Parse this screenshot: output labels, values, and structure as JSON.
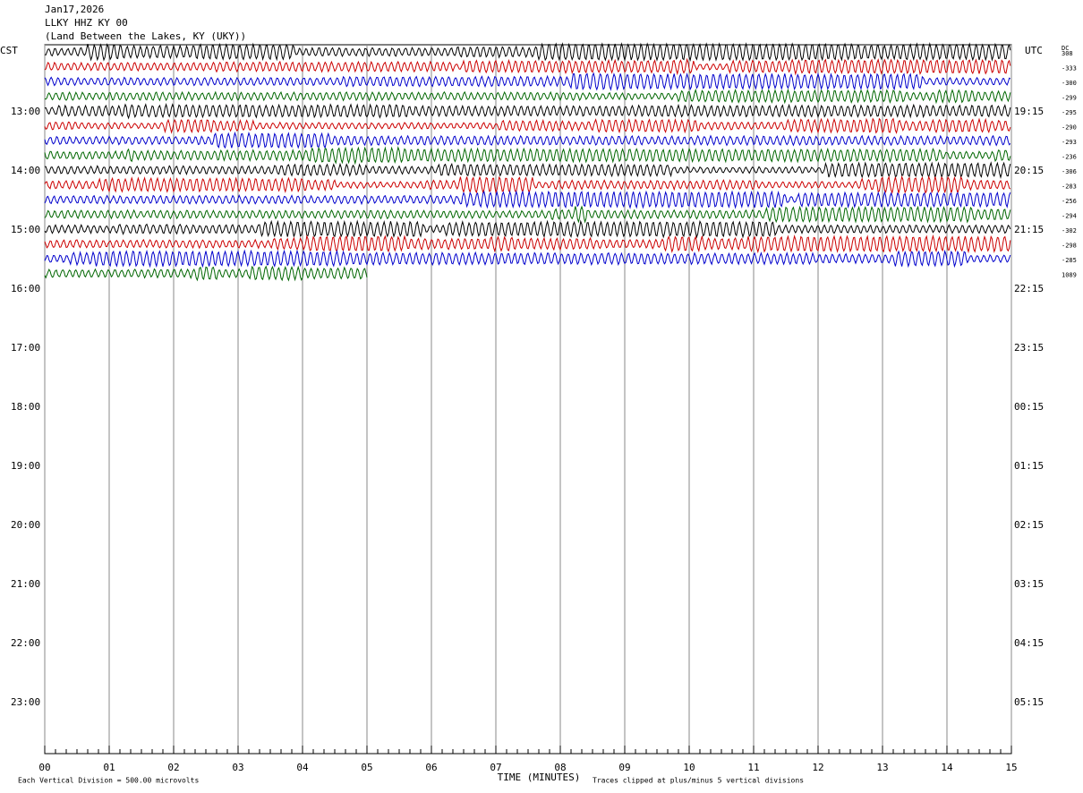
{
  "chart_data": {
    "type": "helicorder",
    "title_lines": [
      "Jan17,2026",
      "LLKY HHZ KY 00",
      "(Land Between the Lakes, KY (UKY))"
    ],
    "left_zone": "CST",
    "right_zone": "UTC",
    "offset_heading": "DC",
    "left_labels": [
      null,
      null,
      null,
      null,
      "13:00",
      null,
      null,
      null,
      "14:00",
      null,
      null,
      null,
      "15:00",
      null,
      null,
      null,
      "16:00",
      null,
      null,
      null,
      "17:00",
      null,
      null,
      null,
      "18:00",
      null,
      null,
      null,
      "19:00",
      null,
      null,
      null,
      "20:00",
      null,
      null,
      null,
      "21:00",
      null,
      null,
      null,
      "22:00",
      null,
      null,
      null,
      "23:00",
      null,
      null,
      null
    ],
    "right_labels": [
      null,
      null,
      null,
      null,
      "19:15",
      null,
      null,
      null,
      "20:15",
      null,
      null,
      null,
      "21:15",
      null,
      null,
      null,
      "22:15",
      null,
      null,
      null,
      "23:15",
      null,
      null,
      null,
      "00:15",
      null,
      null,
      null,
      "01:15",
      null,
      null,
      null,
      "02:15",
      null,
      null,
      null,
      "03:15",
      null,
      null,
      null,
      "04:15",
      null,
      null,
      null,
      "05:15",
      null,
      null,
      null
    ],
    "traces": [
      {
        "color": "#000000",
        "end": 15,
        "offset": 308
      },
      {
        "color": "#cc0000",
        "end": 15,
        "offset": -333
      },
      {
        "color": "#0000cc",
        "end": 15,
        "offset": -300
      },
      {
        "color": "#006600",
        "end": 15,
        "offset": -299
      },
      {
        "color": "#000000",
        "end": 15,
        "offset": -295
      },
      {
        "color": "#cc0000",
        "end": 15,
        "offset": -290
      },
      {
        "color": "#0000cc",
        "end": 15,
        "offset": -293
      },
      {
        "color": "#006600",
        "end": 15,
        "offset": -236
      },
      {
        "color": "#000000",
        "end": 15,
        "offset": -306
      },
      {
        "color": "#cc0000",
        "end": 15,
        "offset": -283
      },
      {
        "color": "#0000cc",
        "end": 15,
        "offset": -256
      },
      {
        "color": "#006600",
        "end": 15,
        "offset": -294
      },
      {
        "color": "#000000",
        "end": 15,
        "offset": -302
      },
      {
        "color": "#cc0000",
        "end": 15,
        "offset": -298
      },
      {
        "color": "#0000cc",
        "end": 15,
        "offset": -285
      },
      {
        "color": "#006600",
        "end": 5,
        "offset": 1089
      }
    ],
    "xlim": [
      0,
      15
    ],
    "xticks": [
      {
        "value": 0,
        "label": "00"
      },
      {
        "value": 1,
        "label": "01"
      },
      {
        "value": 2,
        "label": "02"
      },
      {
        "value": 3,
        "label": "03"
      },
      {
        "value": 4,
        "label": "04"
      },
      {
        "value": 5,
        "label": "05"
      },
      {
        "value": 6,
        "label": "06"
      },
      {
        "value": 7,
        "label": "07"
      },
      {
        "value": 8,
        "label": "08"
      },
      {
        "value": 9,
        "label": "09"
      },
      10,
      11,
      12,
      13,
      14,
      15
    ],
    "x_label": "TIME (MINUTES)",
    "scale_note": "Each Vertical Division =  500.00 microvolts",
    "clip_note": "Traces clipped at plus/minus 5 vertical divisions"
  }
}
